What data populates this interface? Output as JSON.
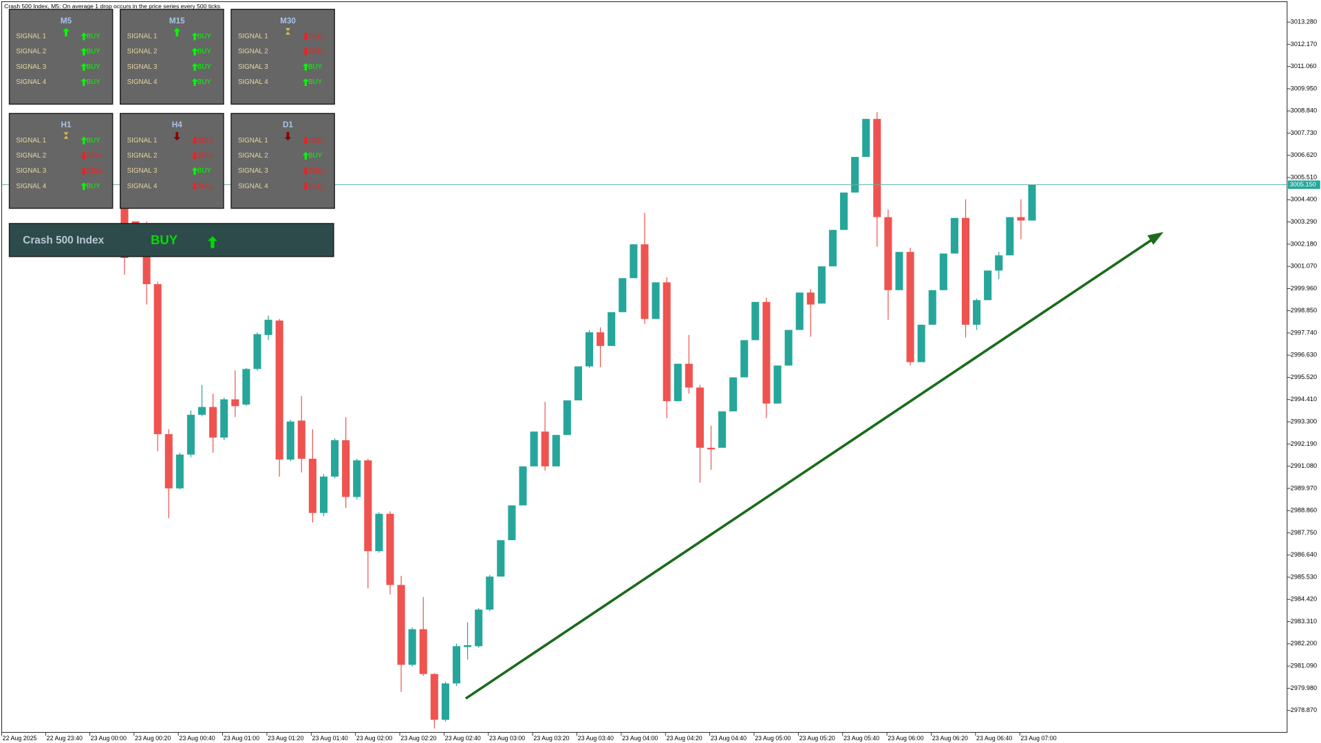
{
  "chart_data": {
    "type": "candlestick",
    "title": "Crash 500 Index, M5:  On average 1 drop occurs in the price series every 500 ticks",
    "up_color": "#26a69a",
    "down_color": "#ef5350",
    "grid": false,
    "ylim": [
      2977.77,
      3014.3
    ],
    "yticks": [
      {
        "value": 3013.28,
        "label": "3013.280"
      },
      {
        "value": 3012.17,
        "label": "3012.170"
      },
      {
        "value": 3011.06,
        "label": "3011.060"
      },
      {
        "value": 3009.95,
        "label": "3009.950"
      },
      {
        "value": 3008.84,
        "label": "3008.840"
      },
      {
        "value": 3007.73,
        "label": "3007.730"
      },
      {
        "value": 3006.62,
        "label": "3006.620"
      },
      {
        "value": 3005.51,
        "label": "3005.510"
      },
      {
        "value": 3004.4,
        "label": "3004.400"
      },
      {
        "value": 3003.29,
        "label": "3003.290"
      },
      {
        "value": 3002.18,
        "label": "3002.180"
      },
      {
        "value": 3001.07,
        "label": "3001.070"
      },
      {
        "value": 2999.96,
        "label": "2999.960"
      },
      {
        "value": 2998.85,
        "label": "2998.850"
      },
      {
        "value": 2997.74,
        "label": "2997.740"
      },
      {
        "value": 2996.63,
        "label": "2996.630"
      },
      {
        "value": 2995.52,
        "label": "2995.520"
      },
      {
        "value": 2994.41,
        "label": "2994.410"
      },
      {
        "value": 2993.3,
        "label": "2993.300"
      },
      {
        "value": 2992.19,
        "label": "2992.190"
      },
      {
        "value": 2991.08,
        "label": "2991.080"
      },
      {
        "value": 2989.97,
        "label": "2989.970"
      },
      {
        "value": 2988.86,
        "label": "2988.860"
      },
      {
        "value": 2987.75,
        "label": "2987.750"
      },
      {
        "value": 2986.64,
        "label": "2986.640"
      },
      {
        "value": 2985.53,
        "label": "2985.530"
      },
      {
        "value": 2984.42,
        "label": "2984.420"
      },
      {
        "value": 2983.31,
        "label": "2983.310"
      },
      {
        "value": 2982.2,
        "label": "2982.200"
      },
      {
        "value": 2981.09,
        "label": "2981.090"
      },
      {
        "value": 2979.98,
        "label": "2979.980"
      },
      {
        "value": 2978.87,
        "label": "2978.870"
      }
    ],
    "current_price": {
      "value": 3005.15,
      "label": "3005.150"
    },
    "time_labels": [
      "22 Aug 2025",
      "22 Aug 23:40",
      "23 Aug 00:00",
      "23 Aug 00:20",
      "23 Aug 00:40",
      "23 Aug 01:00",
      "23 Aug 01:20",
      "23 Aug 01:40",
      "23 Aug 02:00",
      "23 Aug 02:20",
      "23 Aug 02:40",
      "23 Aug 03:00",
      "23 Aug 03:20",
      "23 Aug 03:40",
      "23 Aug 04:00",
      "23 Aug 04:20",
      "23 Aug 04:40",
      "23 Aug 05:00",
      "23 Aug 05:20",
      "23 Aug 05:40",
      "23 Aug 06:00",
      "23 Aug 06:20",
      "23 Aug 06:40",
      "23 Aug 07:00"
    ],
    "open": [
      3004.33,
      3003.32,
      3003.19,
      3000.18,
      2992.68,
      2989.97,
      2991.66,
      2993.65,
      2994.04,
      2992.51,
      2994.42,
      2994.16,
      2995.94,
      2997.64,
      2998.36,
      2991.41,
      2993.36,
      2991.45,
      2988.74,
      2990.56,
      2992.38,
      2989.54,
      2991.37,
      2986.83,
      2988.7,
      2985.14,
      2981.15,
      2982.93,
      2980.69,
      2978.4,
      2980.22,
      2982.04,
      2982.08,
      2983.91,
      2985.56,
      2987.38,
      2989.12,
      2991.07,
      2992.81,
      2991.07,
      2992.64,
      2994.37,
      2996.07,
      2997.77,
      2997.09,
      2998.78,
      3000.48,
      3002.17,
      2998.44,
      3000.27,
      2994.33,
      2996.2,
      2995.01,
      2992.0,
      2992.0,
      2993.82,
      2995.52,
      2997.38,
      2999.29,
      2994.21,
      2996.11,
      2997.89,
      2999.76,
      2999.21,
      3001.07,
      3002.89,
      3004.76,
      3006.54,
      3008.44,
      3003.53,
      2999.88,
      3001.79,
      2996.28,
      2998.15,
      2999.88,
      3001.71,
      3003.49,
      2998.15,
      2999.38,
      3000.86,
      3001.62,
      3003.53,
      3003.36
    ],
    "high": [
      3004.67,
      3003.32,
      3003.32,
      3000.31,
      2992.93,
      2991.75,
      2993.87,
      2995.14,
      2994.71,
      2994.5,
      2995.86,
      2995.99,
      2997.77,
      2998.61,
      2998.44,
      2993.4,
      2994.59,
      2992.93,
      2990.69,
      2992.47,
      2993.53,
      2991.45,
      2991.45,
      2988.78,
      2988.82,
      2985.6,
      2983.02,
      2984.54,
      2980.73,
      2980.3,
      2982.21,
      2983.27,
      2983.99,
      2985.64,
      2987.38,
      2989.12,
      2991.07,
      2992.81,
      2994.29,
      2992.64,
      2994.37,
      2996.07,
      2997.89,
      2998.02,
      2998.78,
      3000.48,
      3002.17,
      3003.74,
      3000.27,
      3000.52,
      2996.2,
      2997.64,
      2995.14,
      2993.1,
      2993.82,
      2995.52,
      2997.38,
      2999.29,
      2999.5,
      2996.11,
      2997.89,
      2999.76,
      2999.93,
      3001.07,
      3002.89,
      3004.76,
      3006.54,
      3008.44,
      3008.78,
      3003.91,
      3001.79,
      3002.0,
      2998.15,
      2999.88,
      3001.71,
      3003.49,
      3004.42,
      2999.46,
      3000.86,
      3001.79,
      3003.53,
      3004.42,
      3005.15
    ],
    "low": [
      3000.65,
      3001.71,
      2999.16,
      2991.83,
      2988.48,
      2989.92,
      2991.53,
      2993.57,
      2991.75,
      2992.38,
      2993.53,
      2994.08,
      2995.86,
      2997.38,
      2990.56,
      2991.32,
      2990.77,
      2988.27,
      2988.57,
      2990.47,
      2988.99,
      2989.42,
      2984.97,
      2986.75,
      2984.67,
      2979.8,
      2981.07,
      2980.6,
      2977.97,
      2978.31,
      2980.09,
      2981.41,
      2982.0,
      2983.82,
      2985.56,
      2987.38,
      2989.12,
      2991.07,
      2990.86,
      2991.07,
      2992.64,
      2994.37,
      2995.99,
      2996.03,
      2997.09,
      2998.78,
      3000.48,
      2998.19,
      2998.44,
      2993.48,
      2994.33,
      2994.71,
      2990.26,
      2990.9,
      2992.0,
      2993.82,
      2995.52,
      2997.38,
      2993.48,
      2994.21,
      2996.11,
      2997.89,
      2997.55,
      2999.21,
      3001.07,
      3002.89,
      3004.76,
      3006.54,
      3002.05,
      2998.4,
      2999.88,
      2996.11,
      2996.28,
      2998.15,
      2999.88,
      3001.71,
      2997.51,
      2997.89,
      2999.38,
      3000.43,
      3001.62,
      3002.43,
      3003.36
    ],
    "close": [
      3001.49,
      3001.71,
      3000.18,
      2992.68,
      2989.97,
      2991.66,
      2993.65,
      2994.04,
      2992.51,
      2994.42,
      2994.08,
      2995.94,
      2997.68,
      2998.4,
      2991.41,
      2993.31,
      2991.45,
      2988.74,
      2990.56,
      2992.38,
      2989.54,
      2991.37,
      2986.83,
      2988.7,
      2985.14,
      2981.15,
      2982.93,
      2980.69,
      2978.4,
      2980.22,
      2982.08,
      2982.13,
      2983.91,
      2985.56,
      2987.38,
      2989.12,
      2991.07,
      2992.81,
      2991.07,
      2992.64,
      2994.37,
      2996.07,
      2997.77,
      2997.09,
      2998.78,
      3000.48,
      3002.17,
      2998.44,
      3000.27,
      2994.33,
      2996.2,
      2995.01,
      2992.0,
      2991.92,
      2993.82,
      2995.52,
      2997.38,
      2999.29,
      2994.21,
      2996.11,
      2997.89,
      2999.76,
      2999.16,
      3001.07,
      3002.89,
      3004.76,
      3006.54,
      3008.44,
      3003.53,
      2999.88,
      3001.79,
      2996.28,
      2998.15,
      2999.88,
      3001.71,
      3003.49,
      2998.15,
      2999.38,
      3000.86,
      3001.62,
      3003.53,
      3003.36,
      3005.15
    ]
  },
  "panels": [
    {
      "title": "M5",
      "signals": [
        {
          "label": "SIGNAL 1",
          "signal": "BUY"
        },
        {
          "label": "SIGNAL 2",
          "signal": "BUY"
        },
        {
          "label": "SIGNAL 3",
          "signal": "BUY"
        },
        {
          "label": "SIGNAL 4",
          "signal": "BUY"
        }
      ]
    },
    {
      "title": "M15",
      "signals": [
        {
          "label": "SIGNAL 1",
          "signal": "BUY"
        },
        {
          "label": "SIGNAL 2",
          "signal": "BUY"
        },
        {
          "label": "SIGNAL 3",
          "signal": "BUY"
        },
        {
          "label": "SIGNAL 4",
          "signal": "BUY"
        }
      ]
    },
    {
      "title": "M30",
      "signals": [
        {
          "label": "SIGNAL 1",
          "signal": "SELL"
        },
        {
          "label": "SIGNAL 2",
          "signal": "SELL"
        },
        {
          "label": "SIGNAL 3",
          "signal": "BUY"
        },
        {
          "label": "SIGNAL 4",
          "signal": "BUY"
        }
      ]
    },
    {
      "title": "H1",
      "signals": [
        {
          "label": "SIGNAL 1",
          "signal": "BUY"
        },
        {
          "label": "SIGNAL 2",
          "signal": "SELL"
        },
        {
          "label": "SIGNAL 3",
          "signal": "SELL"
        },
        {
          "label": "SIGNAL 4",
          "signal": "BUY"
        }
      ]
    },
    {
      "title": "H4",
      "signals": [
        {
          "label": "SIGNAL 1",
          "signal": "SELL"
        },
        {
          "label": "SIGNAL 2",
          "signal": "SELL"
        },
        {
          "label": "SIGNAL 3",
          "signal": "BUY"
        },
        {
          "label": "SIGNAL 4",
          "signal": "SELL"
        }
      ]
    },
    {
      "title": "D1",
      "signals": [
        {
          "label": "SIGNAL 1",
          "signal": "SELL"
        },
        {
          "label": "SIGNAL 2",
          "signal": "BUY"
        },
        {
          "label": "SIGNAL 3",
          "signal": "SELL"
        },
        {
          "label": "SIGNAL 4",
          "signal": "SELL"
        }
      ]
    }
  ],
  "summary": {
    "symbol": "Crash 500 Index",
    "signal": "BUY"
  }
}
